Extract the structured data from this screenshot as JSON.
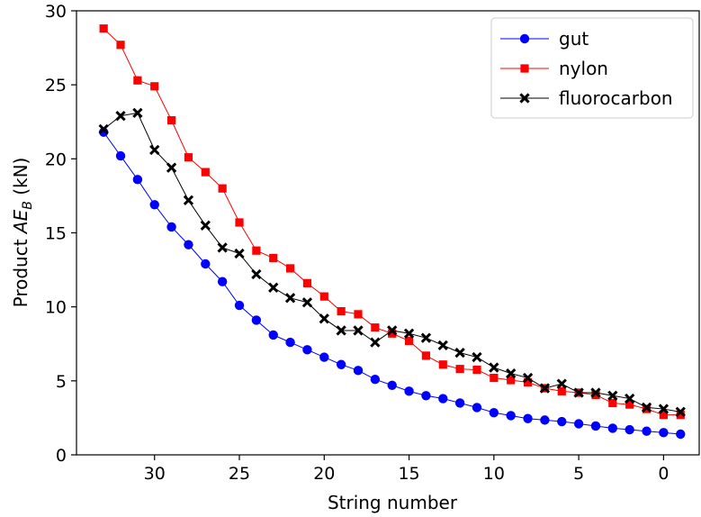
{
  "chart_data": {
    "type": "line",
    "xlabel": "String number",
    "ylabel_prefix": "Product ",
    "ylabel_var": "AE",
    "ylabel_sub": "B",
    "ylabel_unit": " (kN)",
    "xlim": [
      34.6,
      -2.1
    ],
    "ylim": [
      0,
      30
    ],
    "x_inverted": true,
    "xticks": [
      30,
      25,
      20,
      15,
      10,
      5,
      0
    ],
    "yticks": [
      0,
      5,
      10,
      15,
      20,
      25,
      30
    ],
    "legend_position": "top-right",
    "x": [
      33,
      32,
      31,
      30,
      29,
      28,
      27,
      26,
      25,
      24,
      23,
      22,
      21,
      20,
      19,
      18,
      17,
      16,
      15,
      14,
      13,
      12,
      11,
      10,
      9,
      8,
      7,
      6,
      5,
      4,
      3,
      2,
      1,
      0,
      -1
    ],
    "series": [
      {
        "name": "gut",
        "color": "#0000ff",
        "marker": "circle",
        "values": [
          21.8,
          20.2,
          18.6,
          16.9,
          15.4,
          14.2,
          12.9,
          11.7,
          10.1,
          9.1,
          8.1,
          7.6,
          7.1,
          6.6,
          6.1,
          5.7,
          5.1,
          4.7,
          4.3,
          4.0,
          3.8,
          3.5,
          3.2,
          2.85,
          2.65,
          2.45,
          2.35,
          2.25,
          2.1,
          1.95,
          1.8,
          1.7,
          1.6,
          1.5,
          1.4
        ]
      },
      {
        "name": "nylon",
        "color": "#ff0000",
        "marker": "square",
        "values": [
          28.8,
          27.7,
          25.3,
          24.9,
          22.6,
          20.1,
          19.1,
          18.0,
          15.7,
          13.8,
          13.3,
          12.6,
          11.6,
          10.7,
          9.7,
          9.5,
          8.6,
          8.2,
          7.7,
          6.7,
          6.1,
          5.8,
          5.75,
          5.2,
          5.05,
          4.9,
          4.5,
          4.3,
          4.2,
          4.05,
          3.5,
          3.4,
          3.1,
          2.7,
          2.7
        ]
      },
      {
        "name": "fluorocarbon",
        "color": "#000000",
        "marker": "x",
        "values": [
          22.0,
          22.9,
          23.1,
          20.6,
          19.4,
          17.2,
          15.5,
          14.0,
          13.6,
          12.2,
          11.3,
          10.6,
          10.3,
          9.2,
          8.4,
          8.4,
          7.6,
          8.4,
          8.2,
          7.9,
          7.4,
          6.9,
          6.6,
          5.9,
          5.5,
          5.2,
          4.5,
          4.8,
          4.2,
          4.2,
          4.0,
          3.8,
          3.2,
          3.1,
          2.9
        ]
      }
    ]
  }
}
